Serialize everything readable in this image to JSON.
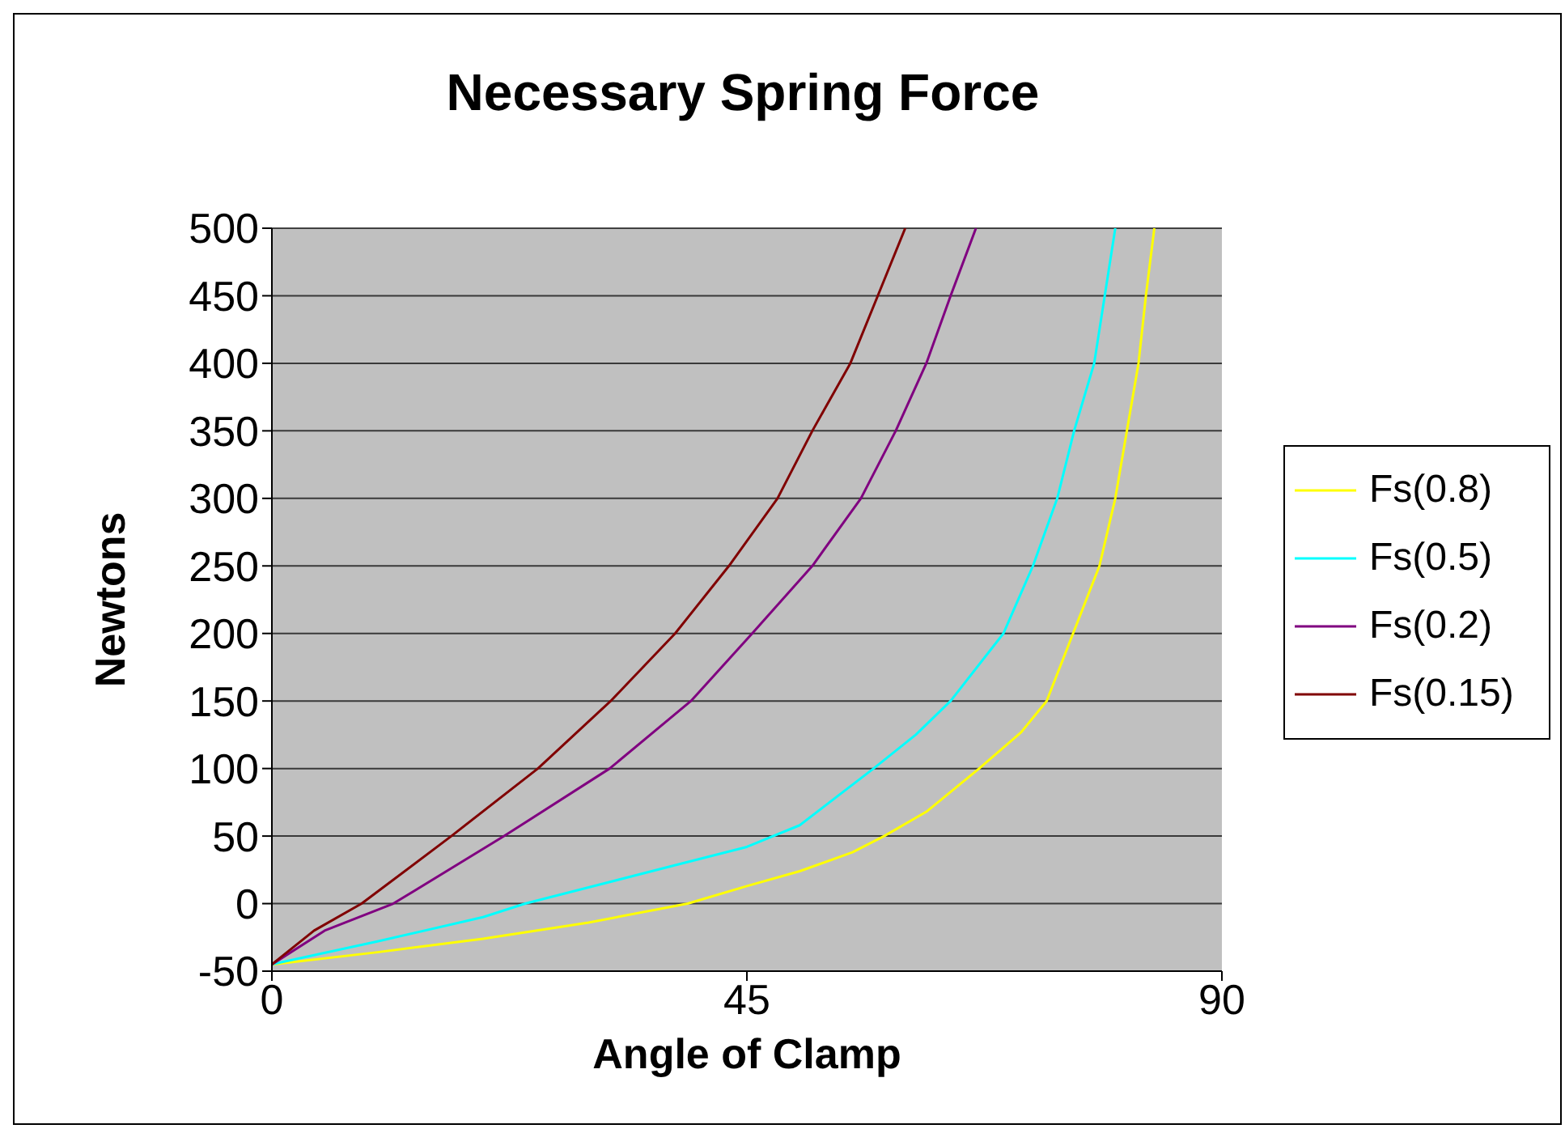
{
  "chart_data": {
    "type": "line",
    "title": "Necessary Spring Force",
    "xlabel": "Angle of Clamp",
    "ylabel": "Newtons",
    "xlim": [
      0,
      90
    ],
    "xticks": [
      0,
      45,
      90
    ],
    "ylim": [
      -50,
      500
    ],
    "yticks": [
      -50,
      0,
      50,
      100,
      150,
      200,
      250,
      300,
      350,
      400,
      450,
      500
    ],
    "grid": "y",
    "legend": "right",
    "marker": "none",
    "line_style": "solid",
    "series": [
      {
        "name": "Fs(0.8)",
        "color": "#ffff00",
        "x": [
          0,
          10,
          20,
          30,
          39.4,
          45,
          50,
          55,
          58,
          62,
          67,
          71,
          73.4,
          75.9,
          78.4,
          79.9,
          81,
          82.1,
          82.8,
          83.6
        ],
        "values": [
          -45,
          -36,
          -26,
          -14,
          0,
          13,
          24,
          38,
          50,
          68,
          100,
          127,
          150,
          200,
          250,
          300,
          350,
          400,
          450,
          500
        ]
      },
      {
        "name": "Fs(0.5)",
        "color": "#00ffff",
        "x": [
          0,
          10,
          20,
          24,
          30,
          38,
          45,
          50,
          57,
          61,
          64.3,
          69.3,
          72.1,
          74.4,
          76,
          77.9,
          78.9,
          79.9
        ],
        "values": [
          -45,
          -28,
          -10,
          0,
          12,
          28,
          42,
          58,
          100,
          125,
          150,
          200,
          250,
          300,
          350,
          400,
          450,
          500
        ]
      },
      {
        "name": "Fs(0.2)",
        "color": "#800080",
        "x": [
          0,
          5,
          11.5,
          22,
          32,
          39.7,
          45.5,
          51.2,
          55.8,
          59.1,
          62,
          64.3,
          66.7
        ],
        "values": [
          -45,
          -20,
          0,
          50,
          100,
          150,
          200,
          250,
          300,
          350,
          400,
          450,
          500
        ]
      },
      {
        "name": "Fs(0.15)",
        "color": "#800000",
        "x": [
          0,
          4,
          8.5,
          17,
          25.2,
          32.1,
          38.2,
          43.3,
          47.9,
          51.2,
          54.8,
          57.4,
          60
        ],
        "values": [
          -45,
          -20,
          0,
          50,
          100,
          150,
          200,
          250,
          300,
          350,
          400,
          450,
          500
        ]
      }
    ]
  }
}
